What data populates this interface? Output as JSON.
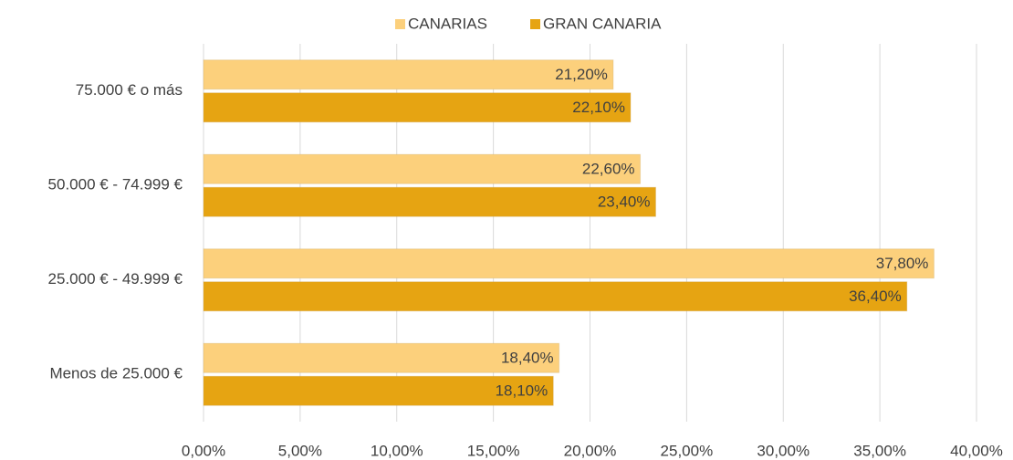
{
  "chart_data": {
    "type": "barh",
    "categories": [
      "Menos de 25.000 €",
      "25.000 € - 49.999 €",
      "50.000 € - 74.999 €",
      "75.000 € o más"
    ],
    "series": [
      {
        "name": "CANARIAS",
        "color": "#fcd07c",
        "values": [
          18.4,
          37.8,
          22.6,
          21.2
        ],
        "value_labels": [
          "18,40%",
          "37,80%",
          "22,60%",
          "21,20%"
        ]
      },
      {
        "name": "GRAN CANARIA",
        "color": "#e6a412",
        "values": [
          18.1,
          36.4,
          23.4,
          22.1
        ],
        "value_labels": [
          "18,10%",
          "36,40%",
          "23,40%",
          "22,10%"
        ]
      }
    ],
    "xlim": [
      0,
      40
    ],
    "xticks": [
      {
        "value": 0,
        "label": "0,00%"
      },
      {
        "value": 5,
        "label": "5,00%"
      },
      {
        "value": 10,
        "label": "10,00%"
      },
      {
        "value": 15,
        "label": "15,00%"
      },
      {
        "value": 20,
        "label": "20,00%"
      },
      {
        "value": 25,
        "label": "25,00%"
      },
      {
        "value": 30,
        "label": "30,00%"
      },
      {
        "value": 35,
        "label": "35,00%"
      },
      {
        "value": 40,
        "label": "40,00%"
      }
    ],
    "grid": true,
    "legend": "top"
  }
}
